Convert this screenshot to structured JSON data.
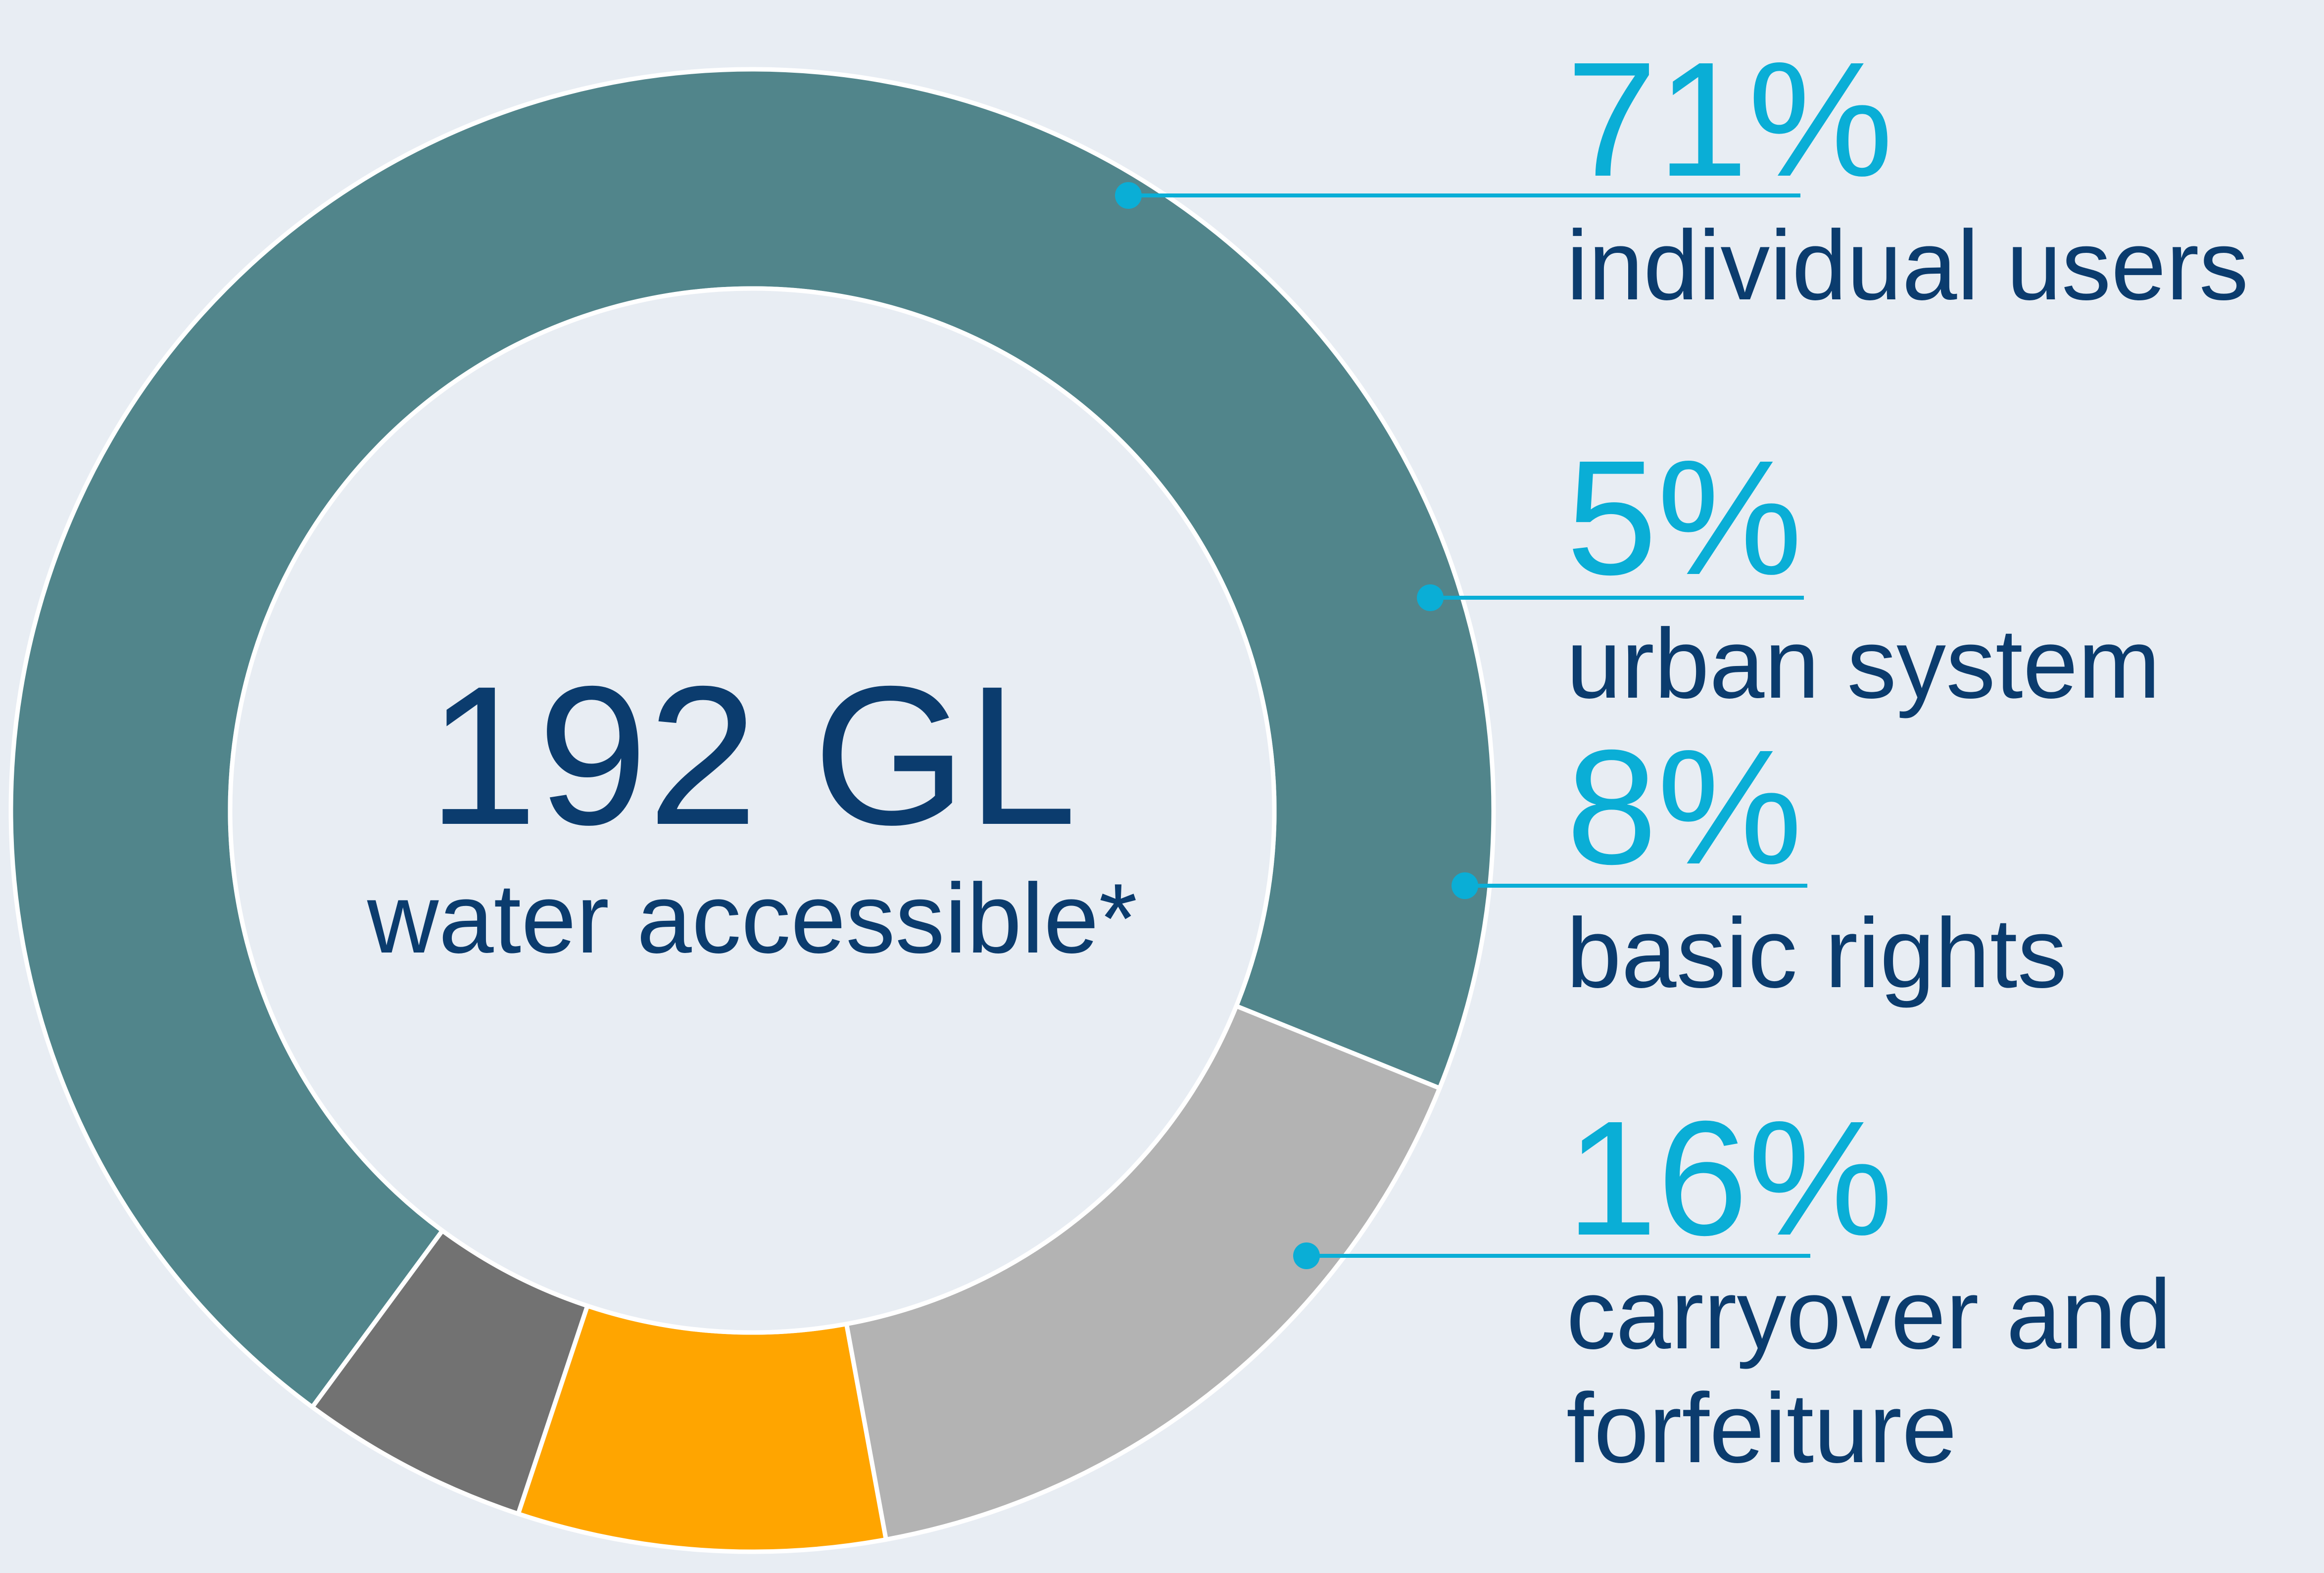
{
  "chart_data": {
    "type": "pie",
    "donut": true,
    "center": {
      "value": "192 GL",
      "label": "water accessible*"
    },
    "slices": [
      {
        "percent_label": "71%",
        "label_lines": [
          "individual users"
        ],
        "value": 71,
        "color": "#51858B"
      },
      {
        "percent_label": "5%",
        "label_lines": [
          "urban system"
        ],
        "value": 5,
        "color": "#727272"
      },
      {
        "percent_label": "8%",
        "label_lines": [
          "basic rights"
        ],
        "value": 8,
        "color": "#FFA500"
      },
      {
        "percent_label": "16%",
        "label_lines": [
          "carryover and",
          "forfeiture"
        ],
        "value": 16,
        "color": "#B3B3B3"
      }
    ],
    "start_angle_deg": -22,
    "direction": "counter-clockwise",
    "legend": "right",
    "colors": {
      "background": "#E8EDF3",
      "accent": "#0AAED6",
      "text": "#0B3C6E",
      "slice_border": "#FFFFFF"
    }
  }
}
